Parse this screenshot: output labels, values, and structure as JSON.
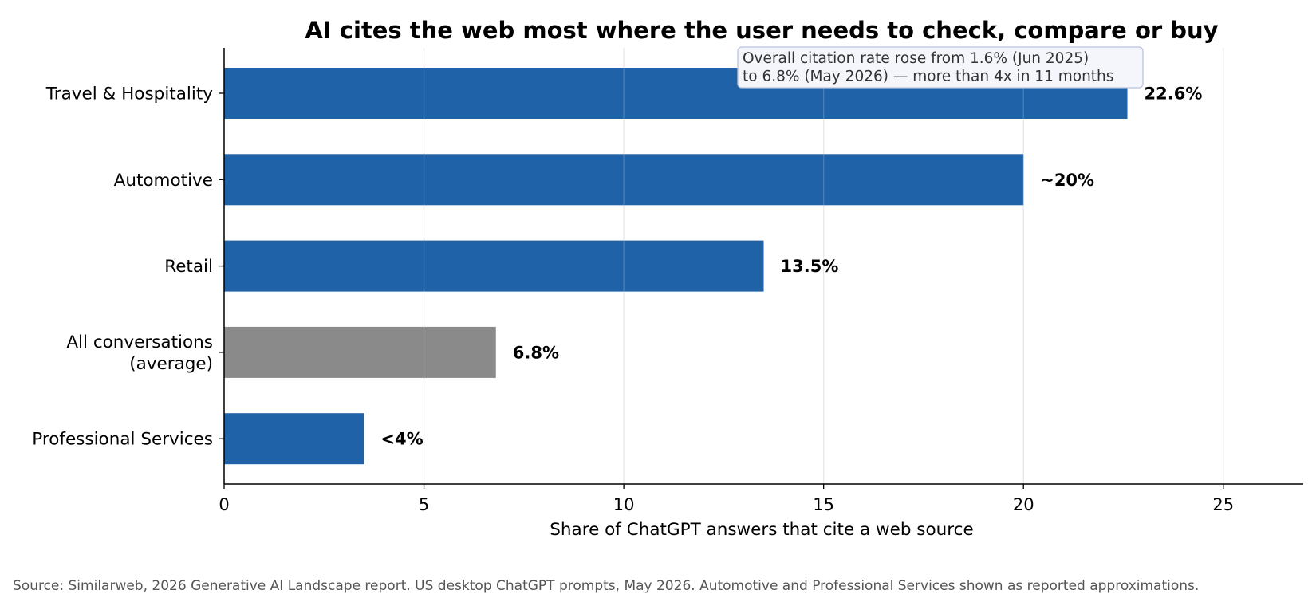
{
  "chart_data": {
    "type": "bar",
    "orientation": "horizontal",
    "title": "AI cites the web most where the user needs to check, compare or buy",
    "xlabel": "Share of ChatGPT answers that cite a web source",
    "ylabel": "",
    "xlim": [
      0,
      27
    ],
    "xticks": [
      0,
      5,
      10,
      15,
      20,
      25
    ],
    "grid": "vertical",
    "categories": [
      "Travel & Hospitality",
      "Automotive",
      "Retail",
      "All conversations\n(average)",
      "Professional Services"
    ],
    "values": [
      22.6,
      20,
      13.5,
      6.8,
      3.5
    ],
    "data_labels": [
      "22.6%",
      "~20%",
      "13.5%",
      "6.8%",
      "<4%"
    ],
    "colors": [
      "#2062a8",
      "#2062a8",
      "#2062a8",
      "#8a8a8a",
      "#2062a8"
    ],
    "annotation": "Overall citation rate rose from 1.6% (Jun 2025)\nto 6.8% (May 2026) — more than 4x in 11 months"
  },
  "source": "Source: Similarweb, 2026 Generative AI Landscape report. US desktop ChatGPT prompts, May 2026. Automotive and Professional Services shown as reported approximations."
}
